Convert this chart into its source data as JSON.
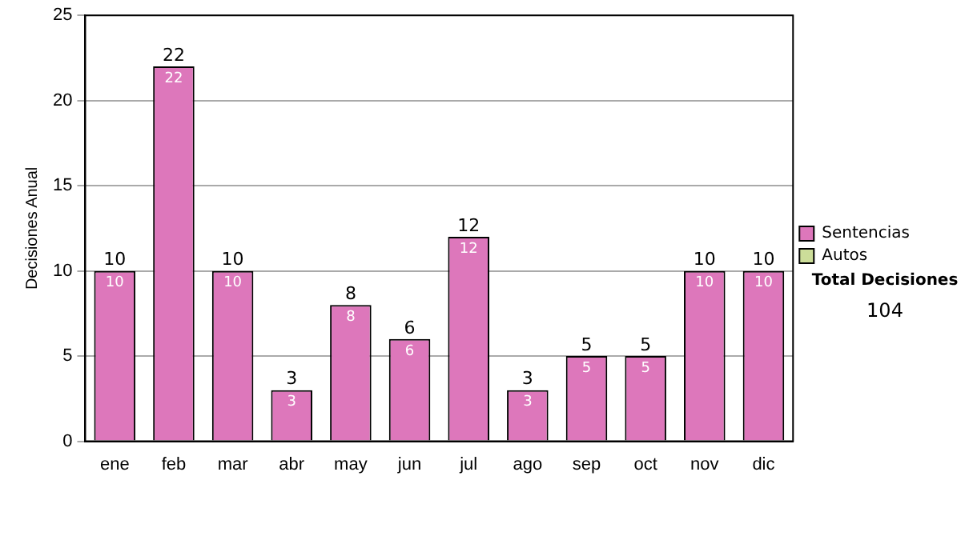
{
  "chart_data": {
    "type": "bar",
    "ylabel": "Decisiones Anual",
    "categories": [
      "ene",
      "feb",
      "mar",
      "abr",
      "may",
      "jun",
      "jul",
      "ago",
      "sep",
      "oct",
      "nov",
      "dic"
    ],
    "series": [
      {
        "name": "Sentencias",
        "color": "#dd77bb",
        "values": [
          10,
          22,
          10,
          3,
          8,
          6,
          12,
          3,
          5,
          5,
          10,
          10
        ],
        "value_labels": [
          "10",
          "22",
          "10",
          "3",
          "8",
          "6",
          "12",
          "3",
          "5",
          "5",
          "10",
          "10"
        ]
      },
      {
        "name": "Autos",
        "color": "#ccdd99",
        "values": [
          0,
          0,
          0,
          0,
          0,
          0,
          0,
          0,
          0,
          0,
          0,
          0
        ]
      }
    ],
    "stacked": true,
    "totals": [
      "10",
      "22",
      "10",
      "3",
      "8",
      "6",
      "12",
      "3",
      "5",
      "5",
      "10",
      "10"
    ],
    "ylim": [
      0,
      25
    ],
    "yticks": [
      0,
      5,
      10,
      15,
      20,
      25
    ],
    "grid": "y",
    "legend": "right",
    "annotations": [
      "Total Decisiones",
      "104"
    ]
  }
}
